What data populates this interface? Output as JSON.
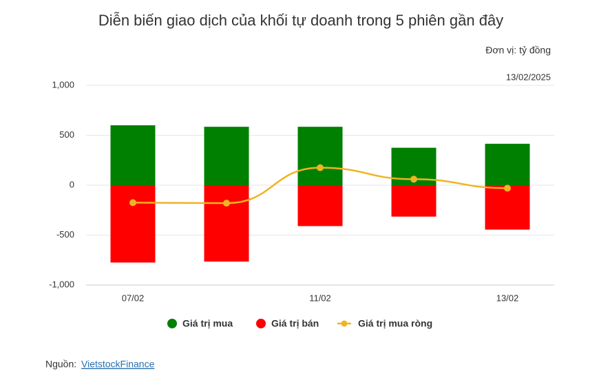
{
  "chart_data": {
    "type": "bar-line",
    "title": "Diễn biến giao dịch của khối tự doanh trong 5 phiên gần đây",
    "unit": "Đơn vị: tỷ đồng",
    "date": "13/02/2025",
    "categories": [
      "07/02",
      null,
      "11/02",
      null,
      "13/02"
    ],
    "series": [
      {
        "name": "Giá trị mua",
        "type": "bar",
        "color": "#008000",
        "values": [
          600,
          585,
          585,
          375,
          415
        ]
      },
      {
        "name": "Giá trị bán",
        "type": "bar",
        "color": "#ff0000",
        "values": [
          -775,
          -765,
          -410,
          -315,
          -445
        ]
      },
      {
        "name": "Giá trị mua ròng",
        "type": "line",
        "color": "#f0b323",
        "values": [
          -175,
          -180,
          175,
          60,
          -30
        ]
      }
    ],
    "ylim": [
      -1000,
      1000
    ],
    "yticks": [
      {
        "value": -1000,
        "label": "-1,000"
      },
      -500,
      0,
      500,
      {
        "value": 1000,
        "label": "1,000"
      }
    ],
    "grid": true,
    "legend": "bottom",
    "source_label": "Nguồn:",
    "source": "VietstockFinance"
  }
}
